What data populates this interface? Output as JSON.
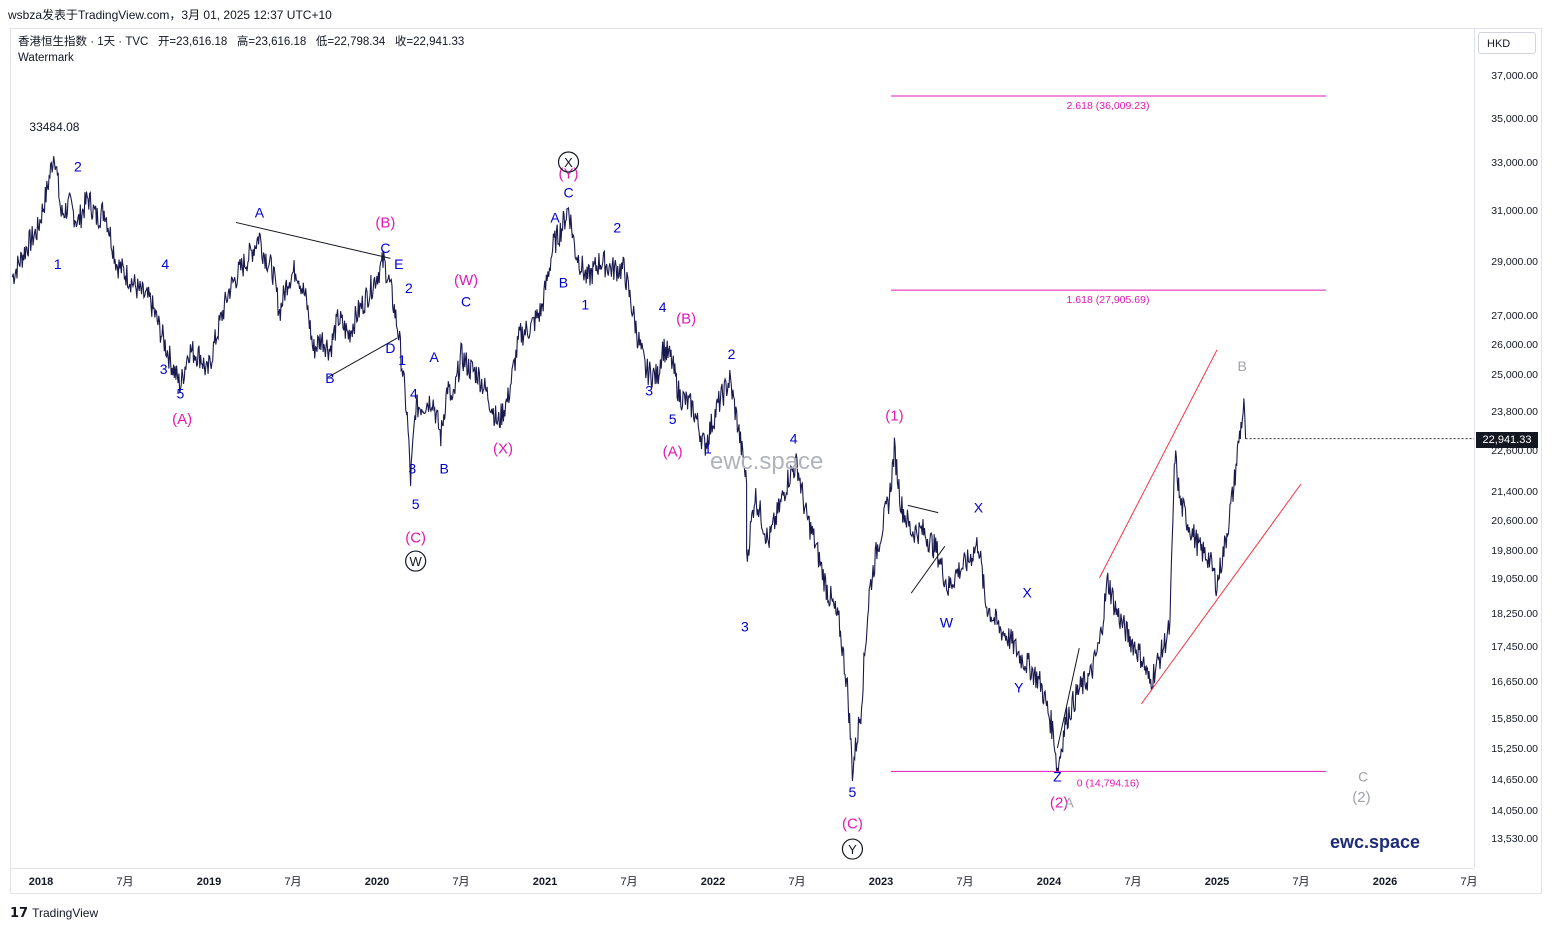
{
  "topbar": {
    "text": "wsbza发表于TradingView.com，3月 01, 2025 12:37 UTC+10"
  },
  "legend": {
    "symbol": "香港恒生指数 · 1天 · TVC",
    "open": "开=23,616.18",
    "high": "高=23,616.18",
    "low": "低=22,798.34",
    "close": "收=22,941.33",
    "watermark_label": "Watermark"
  },
  "currency": "HKD",
  "last_price": "22,941.33",
  "footer": {
    "logo": "𝟭𝟳",
    "brand": "TradingView"
  },
  "watermark": "ewc.space",
  "brand_text": "ewc.space",
  "peak_label": "33484.08",
  "colors": {
    "candles": "#1a1a4e",
    "wave_blue": "#0000cc",
    "wave_magenta": "#e01ab4",
    "fib": "#e01ab4",
    "channel": "#f23645",
    "trend": "#131722",
    "gray": "#a0a3ab"
  },
  "chart_data": {
    "type": "line",
    "title": "",
    "y_ticks": [
      37000,
      35000,
      33000,
      31000,
      29000,
      27000,
      26000,
      25000,
      23800,
      22600,
      21400,
      20600,
      19800,
      19050,
      18250,
      17450,
      16650,
      15850,
      15250,
      14650,
      14050,
      13530
    ],
    "y_tick_labels": [
      "37,000.00",
      "35,000.00",
      "33,000.00",
      "31,000.00",
      "29,000.00",
      "27,000.00",
      "26,000.00",
      "25,000.00",
      "23,800.00",
      "22,600.00",
      "21,400.00",
      "20,600.00",
      "19,800.00",
      "19,050.00",
      "18,250.00",
      "17,450.00",
      "16,650.00",
      "15,850.00",
      "15,250.00",
      "14,650.00",
      "14,050.00",
      "13,530.00"
    ],
    "x_ticks": [
      {
        "label": "2018",
        "t": 2018.0,
        "bold": true
      },
      {
        "label": "7月",
        "t": 2018.5
      },
      {
        "label": "2019",
        "t": 2019.0,
        "bold": true
      },
      {
        "label": "7月",
        "t": 2019.5
      },
      {
        "label": "2020",
        "t": 2020.0,
        "bold": true
      },
      {
        "label": "7月",
        "t": 2020.5
      },
      {
        "label": "2021",
        "t": 2021.0,
        "bold": true
      },
      {
        "label": "7月",
        "t": 2021.5
      },
      {
        "label": "2022",
        "t": 2022.0,
        "bold": true
      },
      {
        "label": "7月",
        "t": 2022.5
      },
      {
        "label": "2023",
        "t": 2023.0,
        "bold": true
      },
      {
        "label": "7月",
        "t": 2023.5
      },
      {
        "label": "2024",
        "t": 2024.0,
        "bold": true
      },
      {
        "label": "7月",
        "t": 2024.5
      },
      {
        "label": "2025",
        "t": 2025.0,
        "bold": true
      },
      {
        "label": "7月",
        "t": 2025.5
      },
      {
        "label": "2026",
        "t": 2026.0,
        "bold": true
      },
      {
        "label": "7月",
        "t": 2026.5
      }
    ],
    "series": [
      {
        "values": [
          [
            2017.83,
            28400
          ],
          [
            2017.92,
            29600
          ],
          [
            2017.98,
            30200
          ],
          [
            2018.03,
            31600
          ],
          [
            2018.08,
            33484
          ],
          [
            2018.12,
            30800
          ],
          [
            2018.17,
            31200
          ],
          [
            2018.22,
            30500
          ],
          [
            2018.28,
            31500
          ],
          [
            2018.33,
            30700
          ],
          [
            2018.38,
            31000
          ],
          [
            2018.45,
            28900
          ],
          [
            2018.52,
            28400
          ],
          [
            2018.58,
            27900
          ],
          [
            2018.65,
            27500
          ],
          [
            2018.72,
            26300
          ],
          [
            2018.78,
            25300
          ],
          [
            2018.83,
            24600
          ],
          [
            2018.88,
            25800
          ],
          [
            2018.95,
            25600
          ],
          [
            2018.99,
            25000
          ],
          [
            2019.05,
            26400
          ],
          [
            2019.12,
            27900
          ],
          [
            2019.18,
            28600
          ],
          [
            2019.25,
            29300
          ],
          [
            2019.3,
            30000
          ],
          [
            2019.32,
            29400
          ],
          [
            2019.38,
            28600
          ],
          [
            2019.42,
            27100
          ],
          [
            2019.47,
            28300
          ],
          [
            2019.52,
            28700
          ],
          [
            2019.58,
            27500
          ],
          [
            2019.62,
            25800
          ],
          [
            2019.67,
            26200
          ],
          [
            2019.72,
            25800
          ],
          [
            2019.77,
            26900
          ],
          [
            2019.83,
            26300
          ],
          [
            2019.88,
            27000
          ],
          [
            2019.95,
            27800
          ],
          [
            2020.04,
            29000
          ],
          [
            2020.08,
            28000
          ],
          [
            2020.13,
            26300
          ],
          [
            2020.18,
            23600
          ],
          [
            2020.2,
            21700
          ],
          [
            2020.23,
            23900
          ],
          [
            2020.28,
            24000
          ],
          [
            2020.33,
            24200
          ],
          [
            2020.38,
            23000
          ],
          [
            2020.42,
            24600
          ],
          [
            2020.45,
            24000
          ],
          [
            2020.5,
            25600
          ],
          [
            2020.55,
            25200
          ],
          [
            2020.6,
            25000
          ],
          [
            2020.66,
            24300
          ],
          [
            2020.72,
            23400
          ],
          [
            2020.78,
            24200
          ],
          [
            2020.85,
            26300
          ],
          [
            2020.92,
            26600
          ],
          [
            2020.98,
            27200
          ],
          [
            2021.05,
            29600
          ],
          [
            2021.1,
            30300
          ],
          [
            2021.14,
            31100
          ],
          [
            2021.18,
            29400
          ],
          [
            2021.25,
            28300
          ],
          [
            2021.33,
            29000
          ],
          [
            2021.4,
            28700
          ],
          [
            2021.47,
            28700
          ],
          [
            2021.55,
            26300
          ],
          [
            2021.6,
            25100
          ],
          [
            2021.67,
            24900
          ],
          [
            2021.7,
            25900
          ],
          [
            2021.75,
            25500
          ],
          [
            2021.8,
            24300
          ],
          [
            2021.88,
            23900
          ],
          [
            2021.95,
            22700
          ],
          [
            2022.03,
            24000
          ],
          [
            2022.1,
            24800
          ],
          [
            2022.15,
            23300
          ],
          [
            2022.2,
            21600
          ],
          [
            2022.2,
            19500
          ],
          [
            2022.25,
            21300
          ],
          [
            2022.33,
            20000
          ],
          [
            2022.4,
            21000
          ],
          [
            2022.45,
            21800
          ],
          [
            2022.5,
            22200
          ],
          [
            2022.55,
            20800
          ],
          [
            2022.6,
            20100
          ],
          [
            2022.67,
            18900
          ],
          [
            2022.75,
            18000
          ],
          [
            2022.8,
            16500
          ],
          [
            2022.83,
            14800
          ],
          [
            2022.88,
            16000
          ],
          [
            2022.93,
            18700
          ],
          [
            2022.98,
            19900
          ],
          [
            2023.05,
            21200
          ],
          [
            2023.08,
            22600
          ],
          [
            2023.12,
            21000
          ],
          [
            2023.18,
            20300
          ],
          [
            2023.25,
            20300
          ],
          [
            2023.33,
            19800
          ],
          [
            2023.4,
            18800
          ],
          [
            2023.45,
            19200
          ],
          [
            2023.52,
            19500
          ],
          [
            2023.58,
            20000
          ],
          [
            2023.62,
            18500
          ],
          [
            2023.7,
            17900
          ],
          [
            2023.77,
            17600
          ],
          [
            2023.83,
            17200
          ],
          [
            2023.88,
            17000
          ],
          [
            2023.95,
            16600
          ],
          [
            2024.03,
            15500
          ],
          [
            2024.05,
            14794
          ],
          [
            2024.1,
            15800
          ],
          [
            2024.17,
            16400
          ],
          [
            2024.25,
            16800
          ],
          [
            2024.3,
            17500
          ],
          [
            2024.35,
            19000
          ],
          [
            2024.4,
            18300
          ],
          [
            2024.47,
            17700
          ],
          [
            2024.55,
            17200
          ],
          [
            2024.6,
            16600
          ],
          [
            2024.67,
            17300
          ],
          [
            2024.72,
            17900
          ],
          [
            2024.75,
            22500
          ],
          [
            2024.78,
            21100
          ],
          [
            2024.83,
            20500
          ],
          [
            2024.9,
            19800
          ],
          [
            2024.95,
            19600
          ],
          [
            2025.0,
            18900
          ],
          [
            2025.05,
            20000
          ],
          [
            2025.1,
            21500
          ],
          [
            2025.13,
            22900
          ],
          [
            2025.16,
            23900
          ],
          [
            2025.17,
            22941
          ]
        ]
      }
    ],
    "fib_levels": [
      {
        "label": "2.618 (36,009.23)",
        "value": 36009.23
      },
      {
        "label": "1.618 (27,905.69)",
        "value": 27905.69
      },
      {
        "label": "0 (14,794.16)",
        "value": 14794.16
      }
    ],
    "wave_labels": [
      {
        "text": "1",
        "t": 2018.1,
        "v": 28700,
        "c": "wave_blue"
      },
      {
        "text": "2",
        "t": 2018.22,
        "v": 32600,
        "c": "wave_blue"
      },
      {
        "text": "4",
        "t": 2018.74,
        "v": 28700,
        "c": "wave_blue"
      },
      {
        "text": "3",
        "t": 2018.73,
        "v": 25000,
        "c": "wave_blue"
      },
      {
        "text": "5",
        "t": 2018.83,
        "v": 24200,
        "c": "wave_blue"
      },
      {
        "text": "(A)",
        "t": 2018.84,
        "v": 23400,
        "c": "wave_magenta"
      },
      {
        "text": "A",
        "t": 2019.3,
        "v": 30700,
        "c": "wave_blue"
      },
      {
        "text": "B",
        "t": 2019.72,
        "v": 24700,
        "c": "wave_blue"
      },
      {
        "text": "(B)",
        "t": 2020.05,
        "v": 30300,
        "c": "wave_magenta"
      },
      {
        "text": "C",
        "t": 2020.05,
        "v": 29300,
        "c": "wave_blue"
      },
      {
        "text": "E",
        "t": 2020.13,
        "v": 28700,
        "c": "wave_blue"
      },
      {
        "text": "D",
        "t": 2020.08,
        "v": 25700,
        "c": "wave_blue"
      },
      {
        "text": "2",
        "t": 2020.19,
        "v": 27800,
        "c": "wave_blue"
      },
      {
        "text": "1",
        "t": 2020.15,
        "v": 25300,
        "c": "wave_blue"
      },
      {
        "text": "4",
        "t": 2020.22,
        "v": 24200,
        "c": "wave_blue"
      },
      {
        "text": "3",
        "t": 2020.21,
        "v": 21900,
        "c": "wave_blue"
      },
      {
        "text": "5",
        "t": 2020.23,
        "v": 20900,
        "c": "wave_blue"
      },
      {
        "text": "(C)",
        "t": 2020.23,
        "v": 20000,
        "c": "wave_magenta"
      },
      {
        "text": "A",
        "t": 2020.34,
        "v": 25400,
        "c": "wave_blue"
      },
      {
        "text": "B",
        "t": 2020.4,
        "v": 21900,
        "c": "wave_blue"
      },
      {
        "text": "(W)",
        "t": 2020.53,
        "v": 28100,
        "c": "wave_magenta"
      },
      {
        "text": "C",
        "t": 2020.53,
        "v": 27300,
        "c": "wave_blue"
      },
      {
        "text": "(X)",
        "t": 2020.75,
        "v": 22500,
        "c": "wave_magenta"
      },
      {
        "text": "A",
        "t": 2021.06,
        "v": 30500,
        "c": "wave_blue"
      },
      {
        "text": "(Y)",
        "t": 2021.14,
        "v": 32300,
        "c": "wave_magenta"
      },
      {
        "text": "C",
        "t": 2021.14,
        "v": 31500,
        "c": "wave_blue"
      },
      {
        "text": "B",
        "t": 2021.11,
        "v": 28000,
        "c": "wave_blue"
      },
      {
        "text": "1",
        "t": 2021.24,
        "v": 27200,
        "c": "wave_blue"
      },
      {
        "text": "2",
        "t": 2021.43,
        "v": 30100,
        "c": "wave_blue"
      },
      {
        "text": "4",
        "t": 2021.7,
        "v": 27100,
        "c": "wave_blue"
      },
      {
        "text": "(B)",
        "t": 2021.84,
        "v": 26700,
        "c": "wave_magenta"
      },
      {
        "text": "3",
        "t": 2021.62,
        "v": 24300,
        "c": "wave_blue"
      },
      {
        "text": "5",
        "t": 2021.76,
        "v": 23400,
        "c": "wave_blue"
      },
      {
        "text": "(A)",
        "t": 2021.76,
        "v": 22400,
        "c": "wave_magenta"
      },
      {
        "text": "2",
        "t": 2022.11,
        "v": 25500,
        "c": "wave_blue"
      },
      {
        "text": "1",
        "t": 2021.97,
        "v": 22500,
        "c": "wave_blue"
      },
      {
        "text": "4",
        "t": 2022.48,
        "v": 22800,
        "c": "wave_blue"
      },
      {
        "text": "3",
        "t": 2022.19,
        "v": 17800,
        "c": "wave_blue"
      },
      {
        "text": "5",
        "t": 2022.83,
        "v": 14300,
        "c": "wave_blue"
      },
      {
        "text": "(C)",
        "t": 2022.83,
        "v": 13700,
        "c": "wave_magenta"
      },
      {
        "text": "(1)",
        "t": 2023.08,
        "v": 23500,
        "c": "wave_magenta"
      },
      {
        "text": "X",
        "t": 2023.58,
        "v": 20800,
        "c": "wave_blue"
      },
      {
        "text": "W",
        "t": 2023.39,
        "v": 17900,
        "c": "wave_blue"
      },
      {
        "text": "X",
        "t": 2023.87,
        "v": 18600,
        "c": "wave_blue"
      },
      {
        "text": "Y",
        "t": 2023.82,
        "v": 16400,
        "c": "wave_blue"
      },
      {
        "text": "Z",
        "t": 2024.05,
        "v": 14600,
        "c": "wave_blue"
      },
      {
        "text": "(2)",
        "t": 2024.06,
        "v": 14100,
        "c": "wave_magenta"
      },
      {
        "text": "A",
        "t": 2024.12,
        "v": 14100,
        "c": "gray"
      },
      {
        "text": "B",
        "t": 2025.15,
        "v": 25100,
        "c": "gray"
      },
      {
        "text": "C",
        "t": 2025.87,
        "v": 14600,
        "c": "gray"
      },
      {
        "text": "(2)",
        "t": 2025.86,
        "v": 14200,
        "c": "gray"
      }
    ],
    "circle_labels": [
      {
        "text": "X",
        "t": 2021.14,
        "v": 33000
      },
      {
        "text": "W",
        "t": 2020.23,
        "v": 19500
      },
      {
        "text": "Y",
        "t": 2022.83,
        "v": 13330
      }
    ]
  }
}
